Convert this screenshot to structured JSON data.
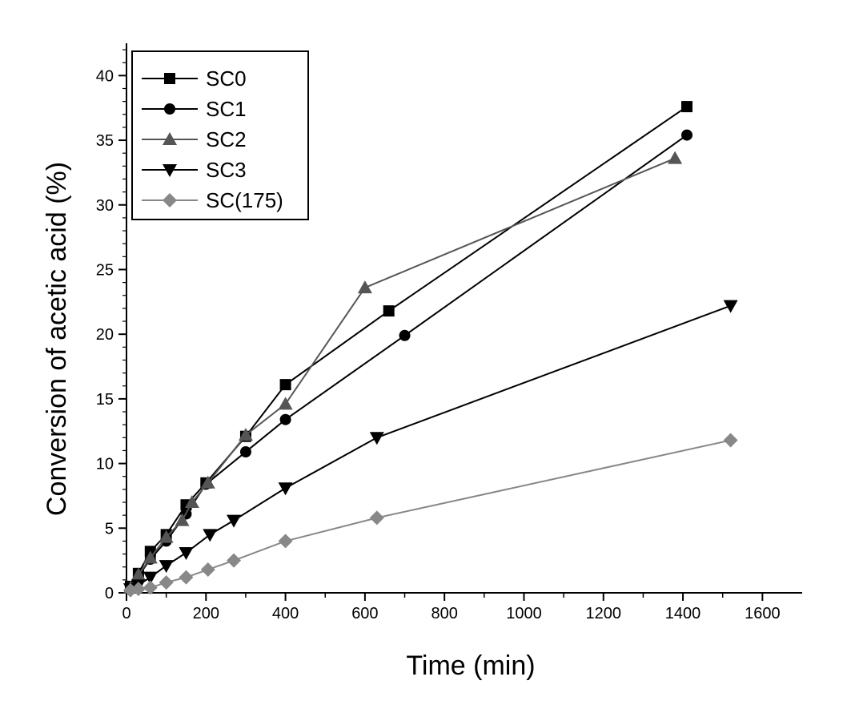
{
  "chart_data": {
    "type": "line",
    "xlabel": "Time (min)",
    "ylabel": "Conversion of acetic acid (%)",
    "xlim": [
      0,
      1700
    ],
    "ylim": [
      0,
      42.5
    ],
    "x_ticks": [
      0,
      200,
      400,
      600,
      800,
      1000,
      1200,
      1400,
      1600
    ],
    "y_ticks": [
      0,
      5,
      10,
      15,
      20,
      25,
      30,
      35,
      40
    ],
    "grid": false,
    "legend_position": "top-left",
    "series": [
      {
        "name": "SC0",
        "marker": "square",
        "color": "#000000",
        "x": [
          10,
          30,
          60,
          100,
          150,
          200,
          300,
          400,
          660,
          1410
        ],
        "y": [
          0.5,
          1.5,
          3.2,
          4.5,
          6.8,
          8.5,
          12.1,
          16.1,
          21.8,
          37.6
        ]
      },
      {
        "name": "SC1",
        "marker": "circle",
        "color": "#000000",
        "x": [
          10,
          30,
          60,
          100,
          150,
          200,
          300,
          400,
          700,
          1410
        ],
        "y": [
          0.4,
          1.3,
          2.6,
          4.0,
          6.1,
          8.4,
          10.9,
          13.4,
          19.9,
          35.4
        ]
      },
      {
        "name": "SC2",
        "marker": "triangle-up",
        "color": "#555555",
        "x": [
          10,
          30,
          60,
          100,
          140,
          165,
          205,
          300,
          400,
          600,
          1380
        ],
        "y": [
          0.4,
          1.4,
          2.7,
          4.3,
          5.6,
          7.0,
          8.5,
          12.2,
          14.6,
          23.6,
          33.6
        ]
      },
      {
        "name": "SC3",
        "marker": "triangle-down",
        "color": "#000000",
        "x": [
          10,
          30,
          60,
          100,
          150,
          210,
          270,
          400,
          630,
          1520
        ],
        "y": [
          0.3,
          0.6,
          1.2,
          2.1,
          3.1,
          4.5,
          5.6,
          8.1,
          12.0,
          22.2
        ]
      },
      {
        "name": "SC(175)",
        "marker": "diamond",
        "color": "#888888",
        "x": [
          10,
          30,
          60,
          100,
          150,
          205,
          270,
          400,
          630,
          1520
        ],
        "y": [
          0.2,
          0.3,
          0.4,
          0.8,
          1.2,
          1.8,
          2.5,
          4.0,
          5.8,
          11.8
        ]
      }
    ]
  }
}
